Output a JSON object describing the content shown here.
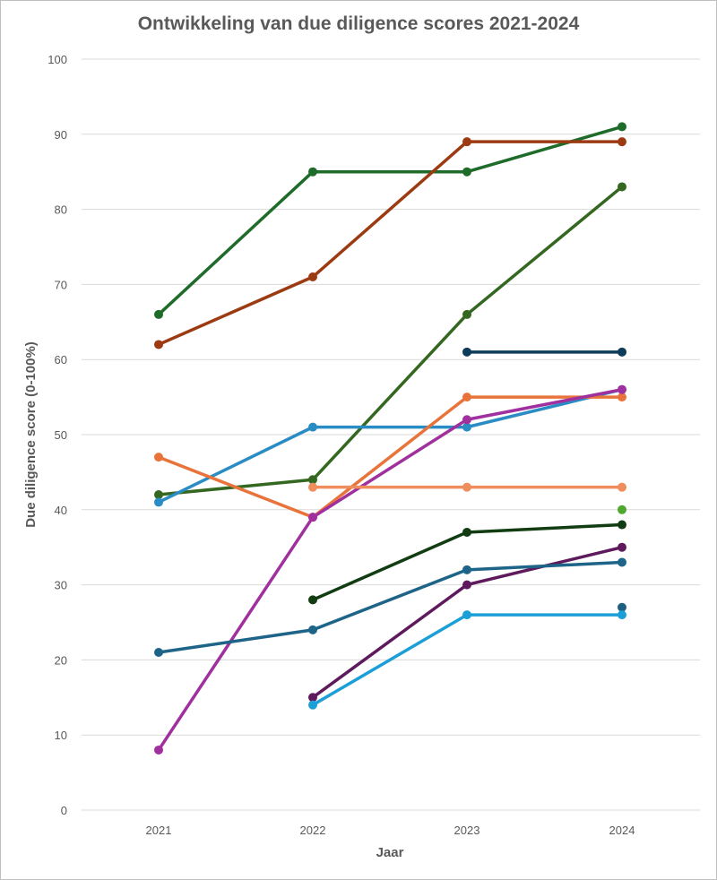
{
  "chart_data": {
    "type": "line",
    "title": "Ontwikkeling van due diligence scores 2021-2024",
    "xlabel": "Jaar",
    "ylabel": "Due diligence score (0-100%)",
    "categories": [
      "2021",
      "2022",
      "2023",
      "2024"
    ],
    "ylim": [
      0,
      100
    ],
    "yticks": [
      0,
      10,
      20,
      30,
      40,
      50,
      60,
      70,
      80,
      90,
      100
    ],
    "grid": "horizontal",
    "legend": "none",
    "series": [
      {
        "color": "#1e6b2a",
        "values": [
          66,
          85,
          85,
          91
        ]
      },
      {
        "color": "#9c3b12",
        "values": [
          62,
          71,
          89,
          89
        ]
      },
      {
        "color": "#34671f",
        "values": [
          42,
          44,
          66,
          83
        ]
      },
      {
        "color": "#0d3b5a",
        "values": [
          null,
          null,
          61,
          61
        ]
      },
      {
        "color": "#2a8cc4",
        "values": [
          41,
          51,
          51,
          56
        ]
      },
      {
        "color": "#e8743b",
        "values": [
          47,
          39,
          55,
          55
        ]
      },
      {
        "color": "#a0309e",
        "values": [
          8,
          39,
          52,
          56
        ]
      },
      {
        "color": "#ef8d5c",
        "values": [
          null,
          43,
          43,
          43
        ]
      },
      {
        "color": "#4ea72e",
        "values": [
          null,
          null,
          null,
          40
        ]
      },
      {
        "color": "#123d12",
        "values": [
          null,
          28,
          37,
          38
        ]
      },
      {
        "color": "#5e1a5c",
        "values": [
          null,
          15,
          30,
          35
        ]
      },
      {
        "color": "#1d6488",
        "values": [
          21,
          24,
          32,
          33
        ]
      },
      {
        "color": "#1e5f82",
        "values": [
          null,
          null,
          null,
          27
        ]
      },
      {
        "color": "#1c9fd6",
        "values": [
          null,
          14,
          26,
          26
        ]
      }
    ]
  }
}
